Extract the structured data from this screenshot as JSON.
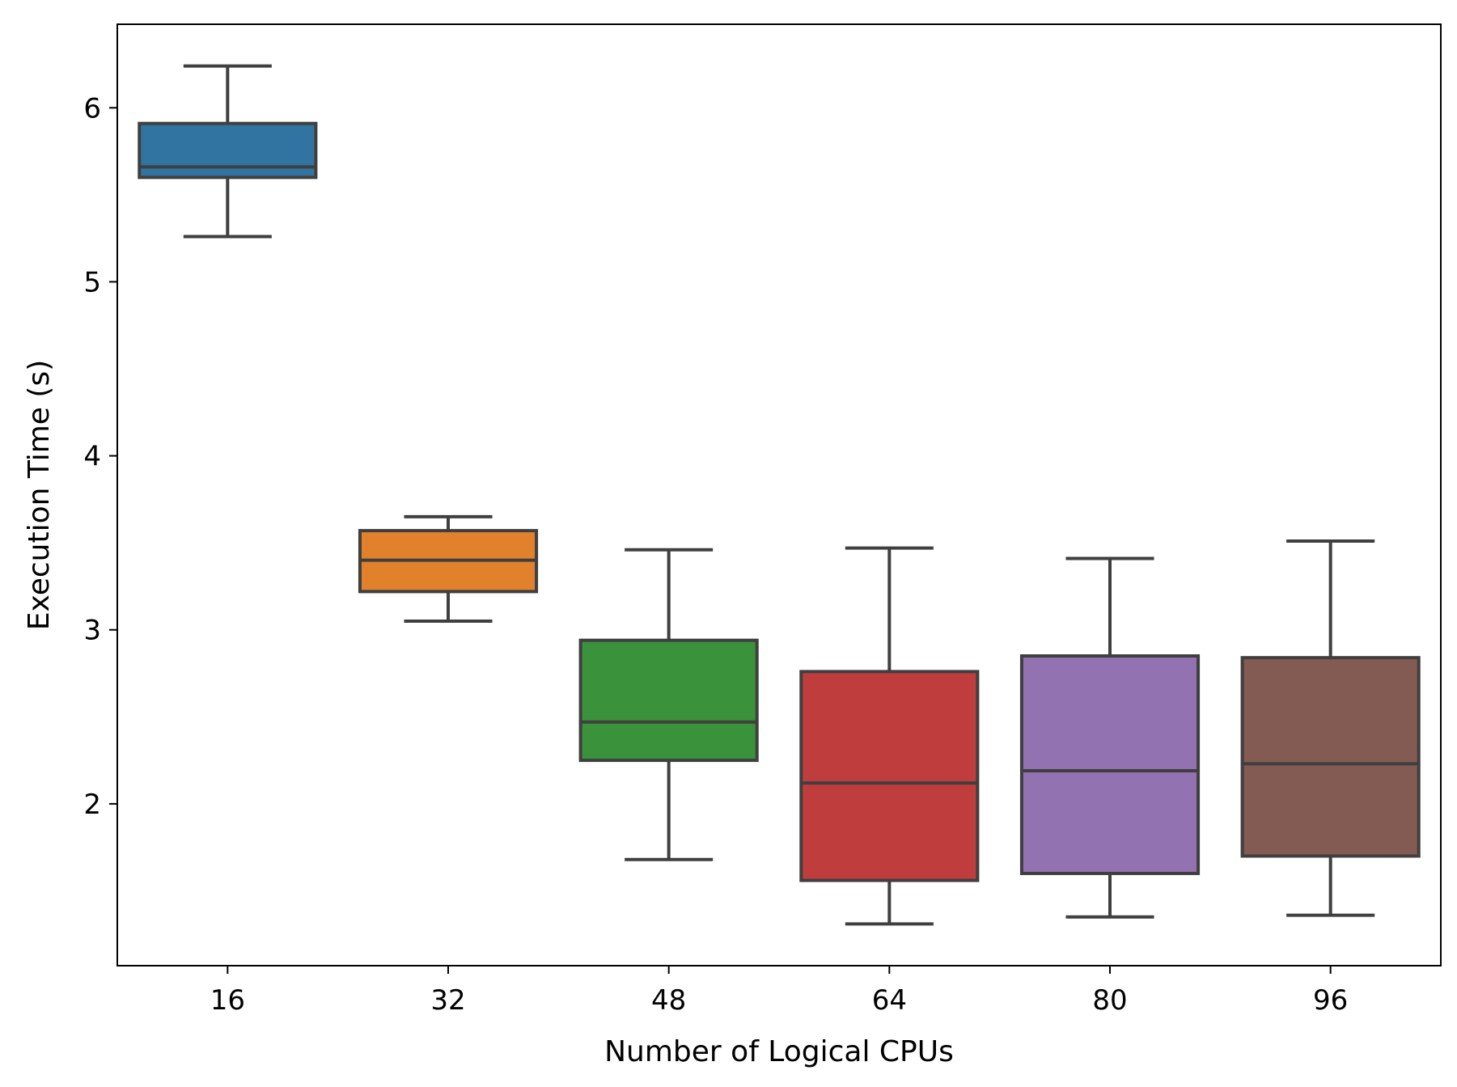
{
  "chart_data": {
    "type": "box",
    "title": "",
    "xlabel": "Number of Logical CPUs",
    "ylabel": "Execution Time (s)",
    "ylim": [
      1.07,
      6.48
    ],
    "yticks": [
      2,
      3,
      4,
      5,
      6
    ],
    "categories": [
      "16",
      "32",
      "48",
      "64",
      "80",
      "96"
    ],
    "grid": false,
    "legend": "none",
    "edge_color": "#3f3f3f",
    "boxes": [
      {
        "category": "16",
        "whisker_low": 5.26,
        "q1": 5.6,
        "median": 5.66,
        "q3": 5.91,
        "whisker_high": 6.24,
        "color": "#3274a1"
      },
      {
        "category": "32",
        "whisker_low": 3.05,
        "q1": 3.22,
        "median": 3.4,
        "q3": 3.57,
        "whisker_high": 3.65,
        "color": "#e1812c"
      },
      {
        "category": "48",
        "whisker_low": 1.68,
        "q1": 2.25,
        "median": 2.47,
        "q3": 2.94,
        "whisker_high": 3.46,
        "color": "#3a923a"
      },
      {
        "category": "64",
        "whisker_low": 1.31,
        "q1": 1.56,
        "median": 2.12,
        "q3": 2.76,
        "whisker_high": 3.47,
        "color": "#c03d3e"
      },
      {
        "category": "80",
        "whisker_low": 1.35,
        "q1": 1.6,
        "median": 2.19,
        "q3": 2.85,
        "whisker_high": 3.41,
        "color": "#9372b2"
      },
      {
        "category": "96",
        "whisker_low": 1.36,
        "q1": 1.7,
        "median": 2.23,
        "q3": 2.84,
        "whisker_high": 3.51,
        "color": "#845b53"
      }
    ]
  }
}
